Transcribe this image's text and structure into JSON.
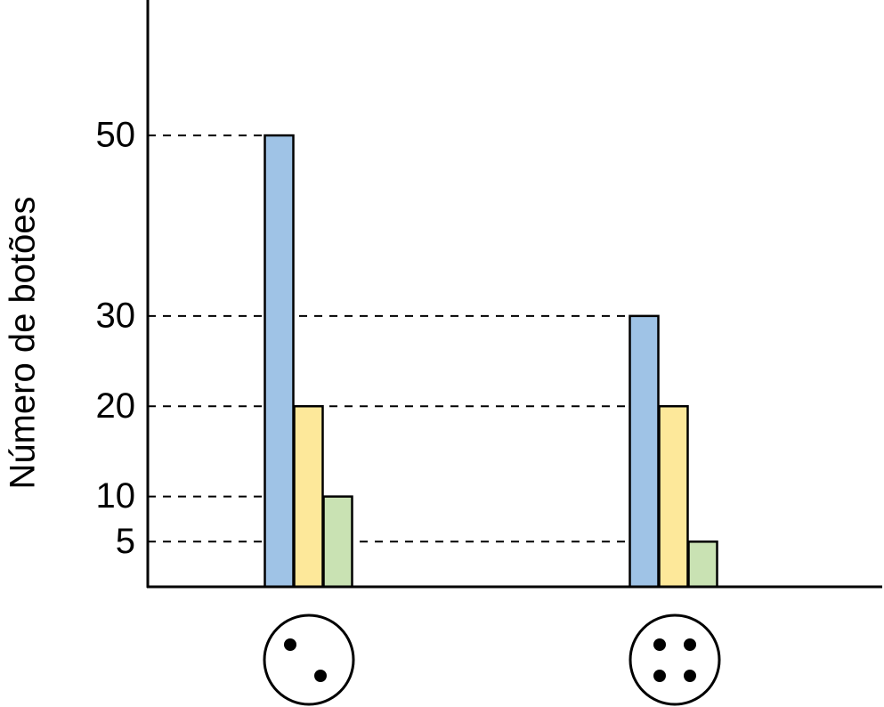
{
  "chart_data": {
    "type": "bar",
    "y_label": "Número de botões",
    "categories": [
      null,
      null
    ],
    "series": [
      {
        "color": "#9fc3e6",
        "values": [
          50,
          30
        ]
      },
      {
        "color": "#fde89a",
        "values": [
          20,
          20
        ]
      },
      {
        "color": "#c9e2b3",
        "values": [
          10,
          5
        ]
      }
    ],
    "ylim": [
      0,
      65
    ],
    "yticks": [
      5,
      10,
      20,
      30,
      50
    ],
    "grid": true
  }
}
